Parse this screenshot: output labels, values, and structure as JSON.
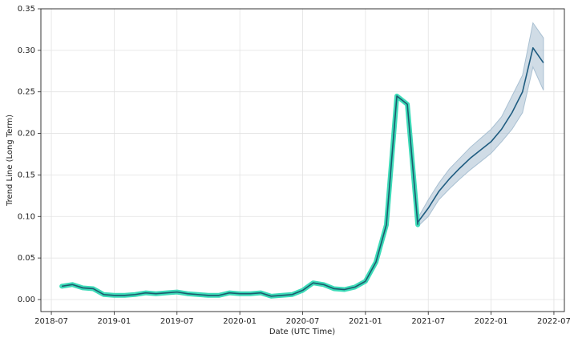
{
  "chart_data": {
    "type": "line",
    "x_label": "Date (UTC Time)",
    "y_label": "Trend Line (Long Term)",
    "xlim": [
      "2018-06",
      "2022-08"
    ],
    "xticks": [
      "2018-07",
      "2019-01",
      "2019-07",
      "2020-01",
      "2020-07",
      "2021-01",
      "2021-07",
      "2022-01",
      "2022-07"
    ],
    "ylim": [
      -0.0145,
      0.35
    ],
    "yticks": [
      {
        "value": 0,
        "label": "0.00"
      },
      0.05,
      {
        "value": 0.1,
        "label": "0.10"
      },
      0.15,
      {
        "value": 0.2,
        "label": "0.20"
      },
      0.25,
      {
        "value": 0.3,
        "label": "0.30"
      },
      0.35
    ],
    "grid": true,
    "band": {
      "color": "#a9c0d2",
      "x": [
        "2021-06",
        "2021-07",
        "2021-08",
        "2021-09",
        "2021-10",
        "2021-11",
        "2021-12",
        "2022-01",
        "2022-02",
        "2022-03",
        "2022-04",
        "2022-05",
        "2022-06"
      ],
      "upper": [
        0.098,
        0.12,
        0.14,
        0.157,
        0.17,
        0.183,
        0.194,
        0.205,
        0.22,
        0.245,
        0.27,
        0.333,
        0.315
      ],
      "lower": [
        0.088,
        0.1,
        0.12,
        0.133,
        0.145,
        0.156,
        0.166,
        0.176,
        0.19,
        0.205,
        0.225,
        0.28,
        0.252
      ]
    },
    "series": [
      {
        "color": "#1d5a6e",
        "glow_color": "#3ddbb8",
        "x": [
          "2018-08",
          "2018-09",
          "2018-10",
          "2018-11",
          "2018-12",
          "2019-01",
          "2019-02",
          "2019-03",
          "2019-04",
          "2019-05",
          "2019-06",
          "2019-07",
          "2019-08",
          "2019-09",
          "2019-10",
          "2019-11",
          "2019-12",
          "2020-01",
          "2020-02",
          "2020-03",
          "2020-04",
          "2020-05",
          "2020-06",
          "2020-07",
          "2020-08",
          "2020-09",
          "2020-10",
          "2020-11",
          "2020-12",
          "2021-01",
          "2021-02",
          "2021-03",
          "2021-04",
          "2021-05",
          "2021-06"
        ],
        "values": [
          0.016,
          0.018,
          0.014,
          0.013,
          0.006,
          0.005,
          0.005,
          0.006,
          0.008,
          0.007,
          0.008,
          0.009,
          0.007,
          0.006,
          0.005,
          0.005,
          0.008,
          0.007,
          0.007,
          0.008,
          0.004,
          0.005,
          0.006,
          0.011,
          0.02,
          0.018,
          0.013,
          0.012,
          0.015,
          0.022,
          0.045,
          0.09,
          0.245,
          0.235,
          0.09
        ]
      },
      {
        "color": "#1f5c80",
        "x": [
          "2021-06",
          "2021-07",
          "2021-08",
          "2021-09",
          "2021-10",
          "2021-11",
          "2021-12",
          "2022-01",
          "2022-02",
          "2022-03",
          "2022-04",
          "2022-05",
          "2022-06"
        ],
        "values": [
          0.093,
          0.11,
          0.13,
          0.145,
          0.158,
          0.17,
          0.18,
          0.19,
          0.205,
          0.225,
          0.25,
          0.303,
          0.285
        ]
      }
    ]
  }
}
